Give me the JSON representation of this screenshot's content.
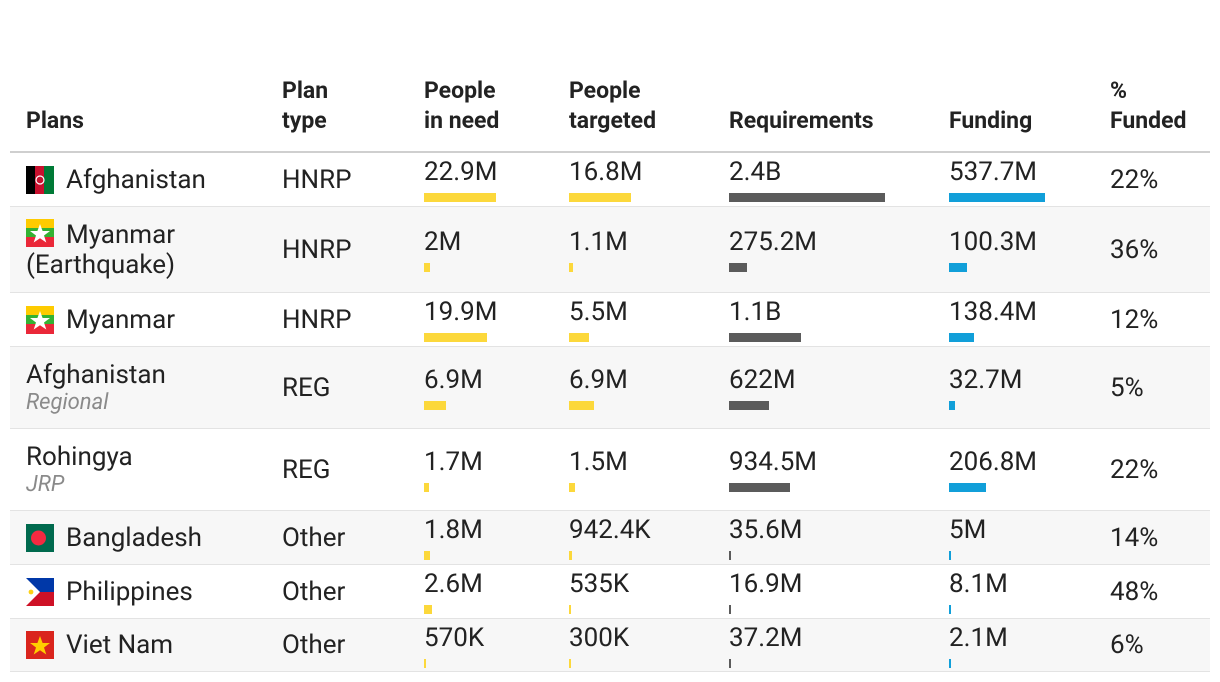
{
  "header": {
    "columns": [
      "Plans",
      "Plan type",
      "People in need",
      "People targeted",
      "Requirements",
      "Funding",
      "% Funded"
    ]
  },
  "table": {
    "rows": [
      {
        "plan": "Afghanistan",
        "plan_type": "HNRP",
        "people_in_need": {
          "value": 22900000,
          "label": "22.9M"
        },
        "people_targeted": {
          "value": 16800000,
          "label": "16.8M"
        },
        "requirements": {
          "value": 2400000000,
          "label": "2.4B"
        },
        "funding": {
          "value": 537700000,
          "label": "537.7M"
        },
        "funded": "22%"
      },
      {
        "plan": "Myanmar (Earthquake)",
        "plan_type": "HNRP",
        "people_in_need": {
          "value": 2000000,
          "label": "2M"
        },
        "people_targeted": {
          "value": 1100000,
          "label": "1.1M"
        },
        "requirements": {
          "value": 275200000,
          "label": "275.2M"
        },
        "funding": {
          "value": 100300000,
          "label": "100.3M"
        },
        "funded": "36%"
      },
      {
        "plan": "Myanmar",
        "plan_type": "HNRP",
        "people_in_need": {
          "value": 19900000,
          "label": "19.9M"
        },
        "people_targeted": {
          "value": 5500000,
          "label": "5.5M"
        },
        "requirements": {
          "value": 1100000000,
          "label": "1.1B"
        },
        "funding": {
          "value": 138400000,
          "label": "138.4M"
        },
        "funded": "12%"
      },
      {
        "plan": "Afghanistan",
        "subtitle": "Regional",
        "plan_type": "REG",
        "people_in_need": {
          "value": 6900000,
          "label": "6.9M"
        },
        "people_targeted": {
          "value": 6900000,
          "label": "6.9M"
        },
        "requirements": {
          "value": 622000000,
          "label": "622M"
        },
        "funding": {
          "value": 32700000,
          "label": "32.7M"
        },
        "funded": "5%"
      },
      {
        "plan": "Rohingya",
        "subtitle": "JRP",
        "plan_type": "REG",
        "people_in_need": {
          "value": 1700000,
          "label": "1.7M"
        },
        "people_targeted": {
          "value": 1500000,
          "label": "1.5M"
        },
        "requirements": {
          "value": 934500000,
          "label": "934.5M"
        },
        "funding": {
          "value": 206800000,
          "label": "206.8M"
        },
        "funded": "22%"
      },
      {
        "plan": "Bangladesh",
        "plan_type": "Other",
        "people_in_need": {
          "value": 1800000,
          "label": "1.8M"
        },
        "people_targeted": {
          "value": 942400,
          "label": "942.4K"
        },
        "requirements": {
          "value": 35600000,
          "label": "35.6M"
        },
        "funding": {
          "value": 5000000,
          "label": "5M"
        },
        "funded": "14%"
      },
      {
        "plan": "Philippines",
        "plan_type": "Other",
        "people_in_need": {
          "value": 2600000,
          "label": "2.6M"
        },
        "people_targeted": {
          "value": 535000,
          "label": "535K"
        },
        "requirements": {
          "value": 16900000,
          "label": "16.9M"
        },
        "funding": {
          "value": 8100000,
          "label": "8.1M"
        },
        "funded": "48%"
      },
      {
        "plan": "Viet Nam",
        "plan_type": "Other",
        "people_in_need": {
          "value": 570000,
          "label": "570K"
        },
        "people_targeted": {
          "value": 300000,
          "label": "300K"
        },
        "requirements": {
          "value": 37200000,
          "label": "37.2M"
        },
        "funding": {
          "value": 2100000,
          "label": "2.1M"
        },
        "funded": "6%"
      }
    ]
  }
}
